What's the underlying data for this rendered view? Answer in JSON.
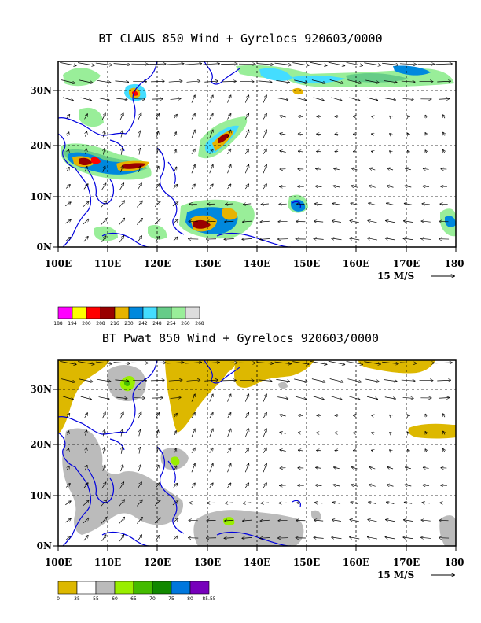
{
  "panels": [
    {
      "id": "top",
      "title": "BT CLAUS 850 Wind + Gyrelocs 920603/0000",
      "x_ticks": [
        "100E",
        "110E",
        "120E",
        "130E",
        "140E",
        "150E",
        "160E",
        "170E",
        "180"
      ],
      "y_ticks": [
        "0N",
        "10N",
        "20N",
        "30N"
      ],
      "vector_scale": "15 M/S",
      "colorbar": {
        "colors": [
          "#ff00ff",
          "#ffff00",
          "#ff0000",
          "#990000",
          "#e6b300",
          "#0088dd",
          "#44ddff",
          "#66cc88",
          "#99ee99",
          "#dddddd"
        ],
        "labels": [
          "188",
          "194",
          "200",
          "208",
          "216",
          "230",
          "242",
          "248",
          "254",
          "260",
          "268"
        ]
      }
    },
    {
      "id": "bottom",
      "title": "BT Pwat 850 Wind + Gyrelocs 920603/0000",
      "x_ticks": [
        "100E",
        "110E",
        "120E",
        "130E",
        "140E",
        "150E",
        "160E",
        "170E",
        "180"
      ],
      "y_ticks": [
        "0N",
        "10N",
        "20N",
        "30N"
      ],
      "vector_scale": "15 M/S",
      "colorbar": {
        "colors": [
          "#ddb800",
          "#ffffff",
          "#bbbbbb",
          "#99ee00",
          "#44bb00",
          "#118800",
          "#0077dd",
          "#7700bb"
        ],
        "labels": [
          "0",
          "35",
          "55",
          "60",
          "65",
          "70",
          "75",
          "80",
          "85.55"
        ]
      }
    }
  ]
}
